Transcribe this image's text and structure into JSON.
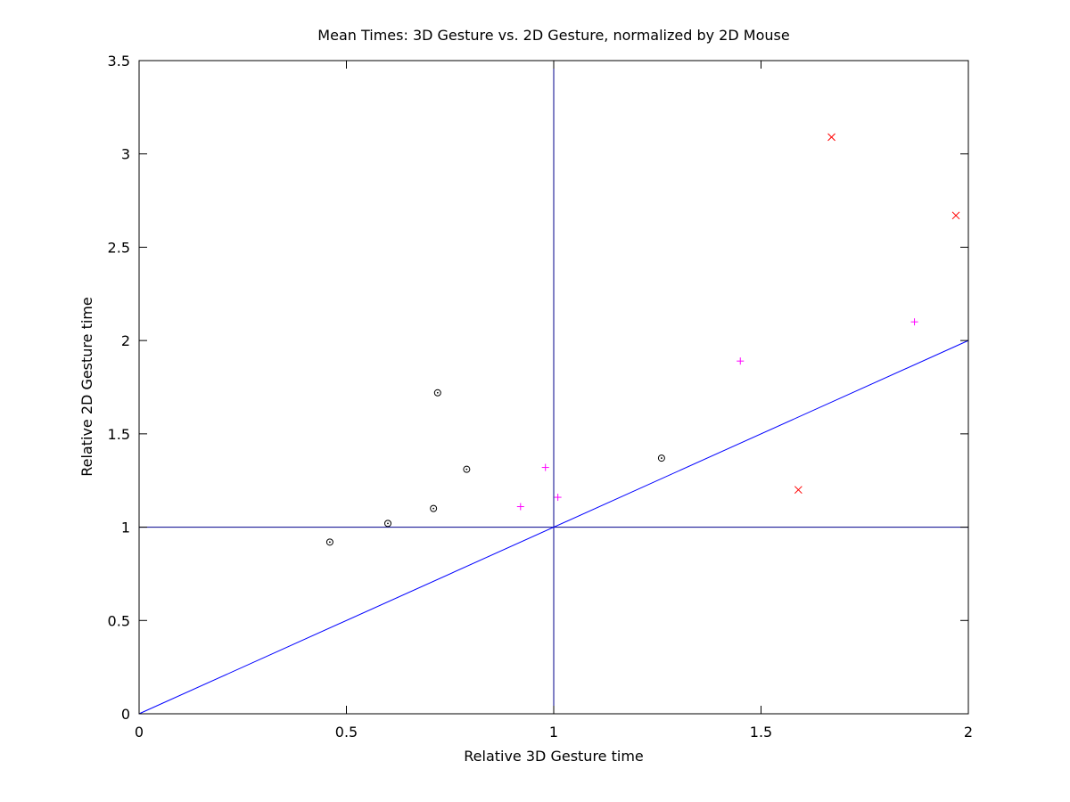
{
  "chart_data": {
    "type": "scatter",
    "title": "Mean Times: 3D Gesture vs. 2D Gesture, normalized by 2D Mouse",
    "xlabel": "Relative 3D Gesture time",
    "ylabel": "Relative 2D Gesture time",
    "xlim": [
      0,
      2
    ],
    "ylim": [
      0,
      3.5
    ],
    "x_ticks": [
      0,
      0.5,
      1,
      1.5,
      2
    ],
    "x_tick_labels": [
      "0",
      "0.5",
      "1",
      "1.5",
      "2"
    ],
    "y_ticks": [
      0,
      0.5,
      1,
      1.5,
      2,
      2.5,
      3,
      3.5
    ],
    "y_tick_labels": [
      "0",
      "0.5",
      "1",
      "1.5",
      "2",
      "2.5",
      "3",
      "3.5"
    ],
    "grid": false,
    "series": [
      {
        "marker": "circle-dot",
        "color": "#000000",
        "points": [
          {
            "x": 0.46,
            "y": 0.92
          },
          {
            "x": 0.6,
            "y": 1.02
          },
          {
            "x": 0.71,
            "y": 1.1
          },
          {
            "x": 0.72,
            "y": 1.72
          },
          {
            "x": 0.79,
            "y": 1.31
          },
          {
            "x": 1.26,
            "y": 1.37
          }
        ]
      },
      {
        "marker": "plus",
        "color": "#ff00ff",
        "points": [
          {
            "x": 0.92,
            "y": 1.11
          },
          {
            "x": 0.98,
            "y": 1.32
          },
          {
            "x": 1.01,
            "y": 1.16
          },
          {
            "x": 1.45,
            "y": 1.89
          },
          {
            "x": 1.87,
            "y": 2.1
          }
        ]
      },
      {
        "marker": "cross",
        "color": "#ff0000",
        "points": [
          {
            "x": 1.59,
            "y": 1.2
          },
          {
            "x": 1.67,
            "y": 3.09
          },
          {
            "x": 1.97,
            "y": 2.67
          }
        ]
      }
    ],
    "reference_lines": [
      {
        "kind": "vertical",
        "x": 1,
        "color": "#00008b"
      },
      {
        "kind": "horizontal",
        "y": 1,
        "color": "#00008b"
      },
      {
        "kind": "diagonal",
        "from": [
          0,
          0
        ],
        "to": [
          2,
          2
        ],
        "color": "#0000ff"
      }
    ]
  }
}
